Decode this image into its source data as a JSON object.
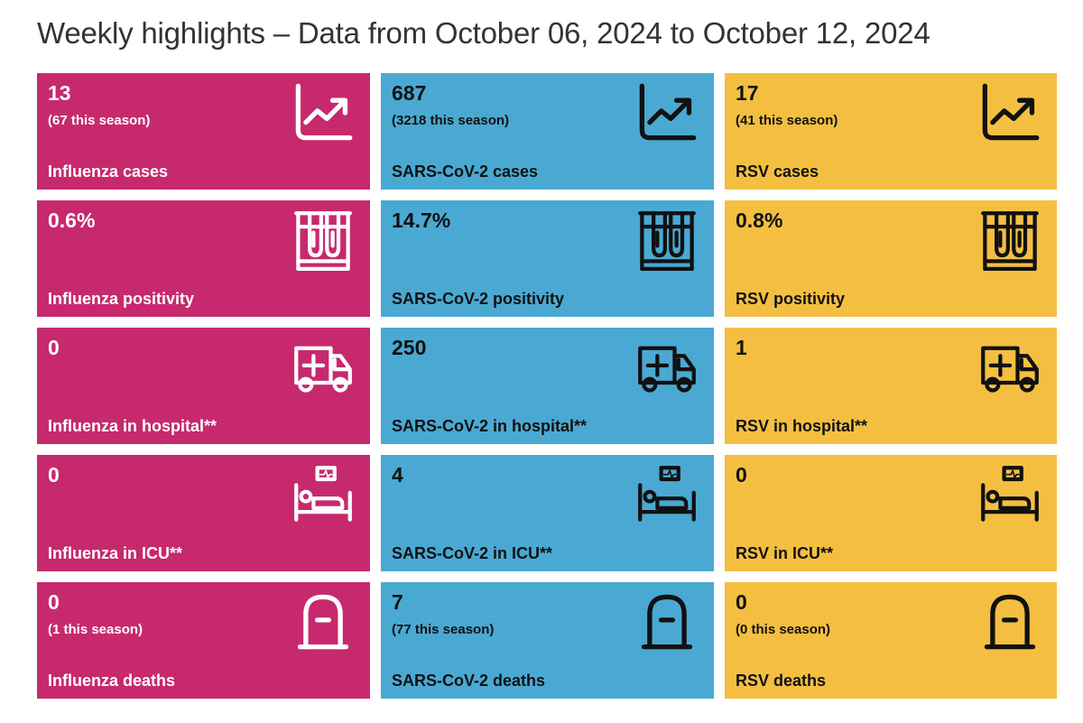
{
  "title": "Weekly highlights – Data from October 06, 2024 to October 12, 2024",
  "colors": {
    "influenza": "#c7296e",
    "sars_cov_2": "#4aa9d2",
    "rsv": "#f4bf41"
  },
  "tiles": {
    "flu_cases": {
      "value": "13",
      "season": "(67 this season)",
      "label": "Influenza cases",
      "icon": "trend-chart-icon"
    },
    "cov_cases": {
      "value": "687",
      "season": "(3218 this season)",
      "label": "SARS-CoV-2 cases",
      "icon": "trend-chart-icon"
    },
    "rsv_cases": {
      "value": "17",
      "season": "(41 this season)",
      "label": "RSV cases",
      "icon": "trend-chart-icon"
    },
    "flu_pos": {
      "value": "0.6%",
      "label": "Influenza positivity",
      "icon": "test-tubes-icon"
    },
    "cov_pos": {
      "value": "14.7%",
      "label": "SARS-CoV-2 positivity",
      "icon": "test-tubes-icon"
    },
    "rsv_pos": {
      "value": "0.8%",
      "label": "RSV positivity",
      "icon": "test-tubes-icon"
    },
    "flu_hosp": {
      "value": "0",
      "label": "Influenza in hospital**",
      "icon": "ambulance-icon"
    },
    "cov_hosp": {
      "value": "250",
      "label": "SARS-CoV-2 in hospital**",
      "icon": "ambulance-icon"
    },
    "rsv_hosp": {
      "value": "1",
      "label": "RSV in hospital**",
      "icon": "ambulance-icon"
    },
    "flu_icu": {
      "value": "0",
      "label": "Influenza in ICU**",
      "icon": "hospital-bed-icon"
    },
    "cov_icu": {
      "value": "4",
      "label": "SARS-CoV-2 in ICU**",
      "icon": "hospital-bed-icon"
    },
    "rsv_icu": {
      "value": "0",
      "label": "RSV in ICU**",
      "icon": "hospital-bed-icon"
    },
    "flu_deaths": {
      "value": "0",
      "season": "(1 this season)",
      "label": "Influenza deaths",
      "icon": "tombstone-icon"
    },
    "cov_deaths": {
      "value": "7",
      "season": "(77 this season)",
      "label": "SARS-CoV-2 deaths",
      "icon": "tombstone-icon"
    },
    "rsv_deaths": {
      "value": "0",
      "season": "(0 this season)",
      "label": "RSV deaths",
      "icon": "tombstone-icon"
    }
  }
}
